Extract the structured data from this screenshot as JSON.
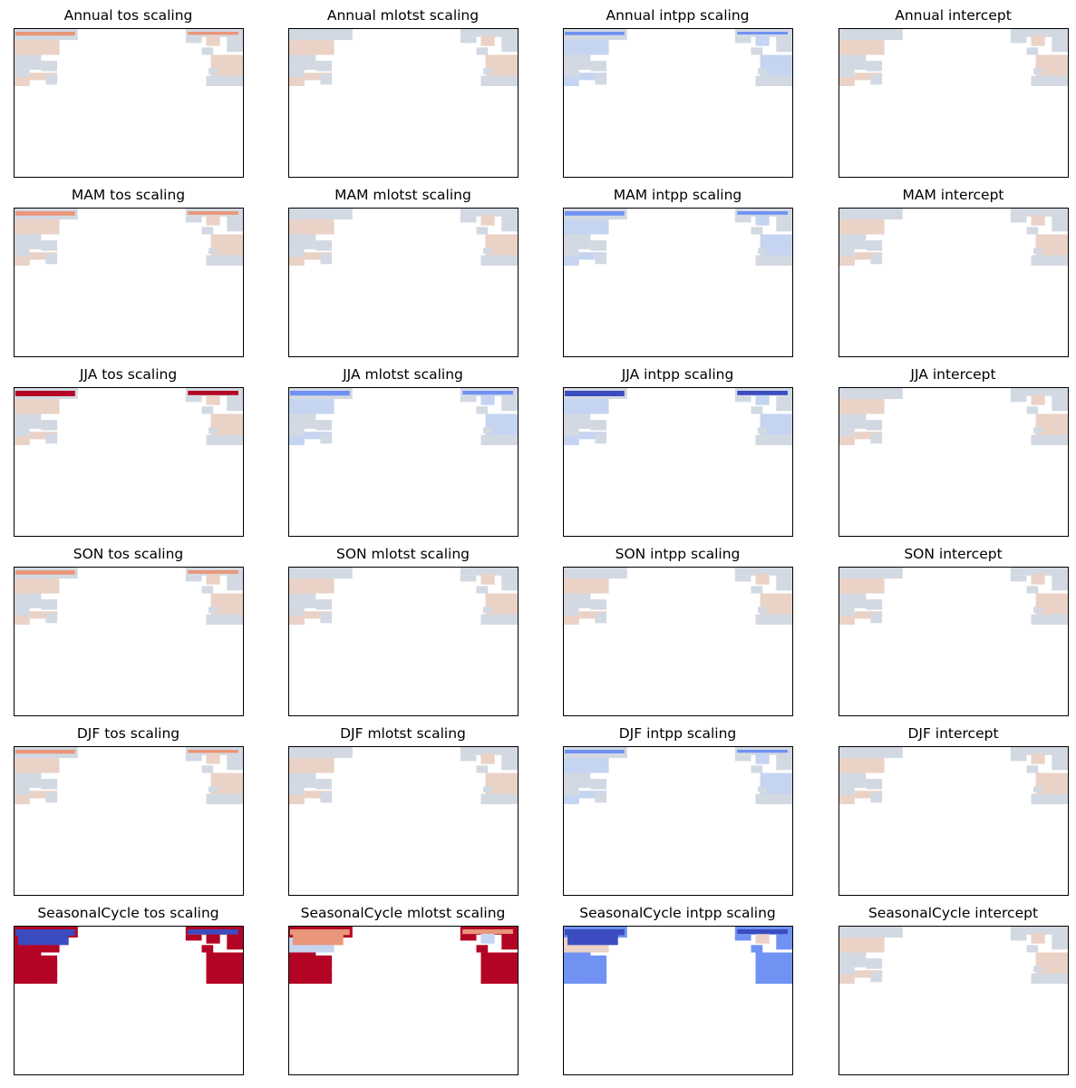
{
  "figure": {
    "rows": [
      "Annual",
      "MAM",
      "JJA",
      "SON",
      "DJF",
      "SeasonalCycle"
    ],
    "columns": [
      "tos scaling",
      "mlotst scaling",
      "intpp scaling",
      "intercept"
    ],
    "colormap": "coolwarm",
    "colors": {
      "land_neutral": "#d3d9e2",
      "warm_light": "#ead2c6",
      "warm": "#e9967a",
      "warm_strong": "#b40426",
      "cool_light": "#c5d4f0",
      "cool": "#6f92f3",
      "cool_strong": "#3b4cc0"
    }
  },
  "chart_data": [
    {
      "type": "heatmap",
      "title": "Annual tos scaling",
      "style": "warm_band",
      "intensity": 0.45
    },
    {
      "type": "heatmap",
      "title": "Annual mlotst scaling",
      "style": "neutral",
      "intensity": 0.2
    },
    {
      "type": "heatmap",
      "title": "Annual intpp scaling",
      "style": "cool_band",
      "intensity": 0.35
    },
    {
      "type": "heatmap",
      "title": "Annual intercept",
      "style": "neutral",
      "intensity": 0.15
    },
    {
      "type": "heatmap",
      "title": "MAM tos scaling",
      "style": "warm_band",
      "intensity": 0.55
    },
    {
      "type": "heatmap",
      "title": "MAM mlotst scaling",
      "style": "neutral",
      "intensity": 0.2
    },
    {
      "type": "heatmap",
      "title": "MAM intpp scaling",
      "style": "cool_band",
      "intensity": 0.55
    },
    {
      "type": "heatmap",
      "title": "MAM intercept",
      "style": "neutral",
      "intensity": 0.2
    },
    {
      "type": "heatmap",
      "title": "JJA tos scaling",
      "style": "warm_band",
      "intensity": 0.8
    },
    {
      "type": "heatmap",
      "title": "JJA mlotst scaling",
      "style": "cool_band",
      "intensity": 0.65
    },
    {
      "type": "heatmap",
      "title": "JJA intpp scaling",
      "style": "cool_band",
      "intensity": 0.8
    },
    {
      "type": "heatmap",
      "title": "JJA intercept",
      "style": "neutral",
      "intensity": 0.15
    },
    {
      "type": "heatmap",
      "title": "SON tos scaling",
      "style": "warm_band",
      "intensity": 0.55
    },
    {
      "type": "heatmap",
      "title": "SON mlotst scaling",
      "style": "neutral",
      "intensity": 0.15
    },
    {
      "type": "heatmap",
      "title": "SON intpp scaling",
      "style": "neutral",
      "intensity": 0.25
    },
    {
      "type": "heatmap",
      "title": "SON intercept",
      "style": "neutral",
      "intensity": 0.2
    },
    {
      "type": "heatmap",
      "title": "DJF tos scaling",
      "style": "warm_band",
      "intensity": 0.45
    },
    {
      "type": "heatmap",
      "title": "DJF mlotst scaling",
      "style": "neutral",
      "intensity": 0.2
    },
    {
      "type": "heatmap",
      "title": "DJF intpp scaling",
      "style": "cool_band",
      "intensity": 0.4
    },
    {
      "type": "heatmap",
      "title": "DJF intercept",
      "style": "neutral",
      "intensity": 0.15
    },
    {
      "type": "heatmap",
      "title": "SeasonalCycle tos scaling",
      "style": "strong_warm",
      "intensity": 1.0
    },
    {
      "type": "heatmap",
      "title": "SeasonalCycle mlotst scaling",
      "style": "strong_warm_mixed",
      "intensity": 0.85
    },
    {
      "type": "heatmap",
      "title": "SeasonalCycle intpp scaling",
      "style": "strong_cool",
      "intensity": 0.9
    },
    {
      "type": "heatmap",
      "title": "SeasonalCycle intercept",
      "style": "neutral",
      "intensity": 0.25
    }
  ]
}
